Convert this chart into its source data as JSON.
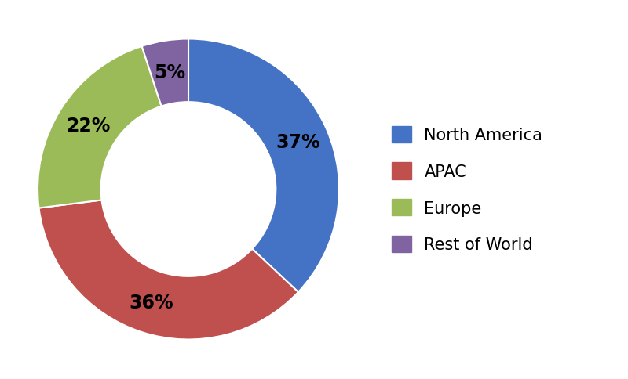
{
  "labels": [
    "North America",
    "APAC",
    "Europe",
    "Rest of World"
  ],
  "values": [
    37,
    36,
    22,
    5
  ],
  "colors": [
    "#4472C4",
    "#C0504D",
    "#9BBB59",
    "#8064A2"
  ],
  "pct_labels": [
    "37%",
    "36%",
    "22%",
    "5%"
  ],
  "legend_labels": [
    "North America",
    "APAC",
    "Europe",
    "Rest of World"
  ],
  "background_color": "#ffffff",
  "label_fontsize": 17,
  "legend_fontsize": 15,
  "donut_width": 0.42,
  "startangle": 90
}
